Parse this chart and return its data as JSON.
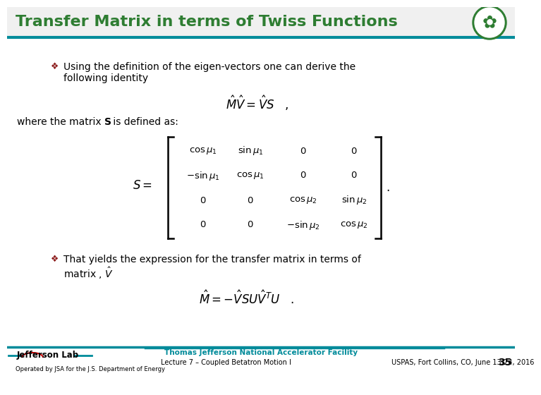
{
  "title": "Transfer Matrix in terms of Twiss Functions",
  "title_color": "#2E7D32",
  "title_fontsize": 16,
  "bg_color": "#FFFFFF",
  "header_bar_color": "#008B9A",
  "footer_bar_color": "#008B9A",
  "bullet_color": "#8B1A1A",
  "bullet1_text1": "Using the definition of the eigen-vectors one can derive the",
  "bullet1_text2": "following identity",
  "bullet2_text1": "That yields the expression for the transfer matrix in terms of",
  "bullet2_text2": "matrix , $\\hat{V}$",
  "footer_left1": "Jefferson Lab",
  "footer_center1": "Thomas Jefferson National Accelerator Facility",
  "footer_center2": "Lecture 7 – Coupled Betatron Motion I",
  "footer_right": "USPAS, Fort Collins, CO, June 13-24, 2016",
  "footer_page": "35",
  "footer_bottom": "Operated by JSA for the J.S. Department of Energy"
}
